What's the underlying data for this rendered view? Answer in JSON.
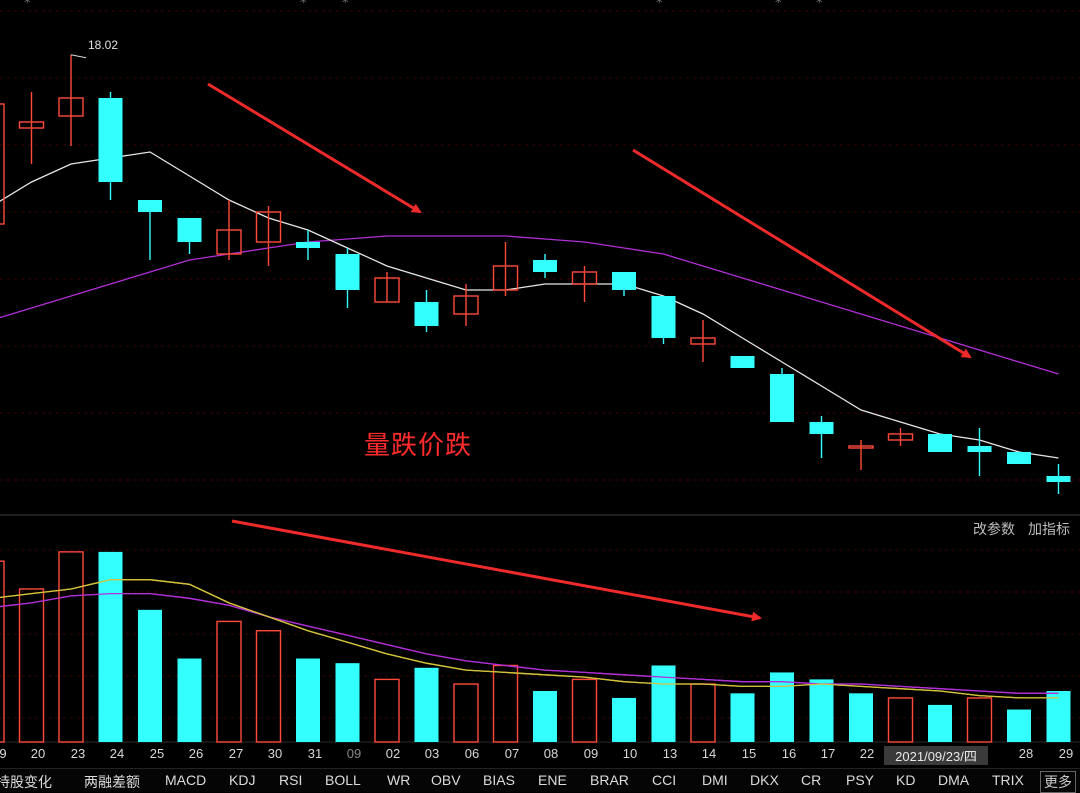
{
  "top_menu": [
    "*",
    "*",
    "*",
    "*",
    "*",
    "*"
  ],
  "high_label": "18.02",
  "annotation": "量跌价跌",
  "volume_panel": {
    "modify_params": "改参数",
    "add_indicator": "加指标"
  },
  "dates": [
    "9",
    "20",
    "23",
    "24",
    "25",
    "26",
    "27",
    "30",
    "31",
    "09",
    "02",
    "03",
    "06",
    "07",
    "08",
    "09",
    "10",
    "13",
    "14",
    "15",
    "16",
    "17",
    "22",
    "2021/09/23/四",
    "28",
    "29"
  ],
  "dim_dates": [
    9
  ],
  "highlight_date": 23,
  "tabs": [
    "持股变化",
    "两融差额",
    "MACD",
    "KDJ",
    "RSI",
    "BOLL",
    "WR",
    "OBV",
    "BIAS",
    "ENE",
    "BRAR",
    "CCI",
    "DMI",
    "DKX",
    "CR",
    "PSY",
    "KD",
    "DMA",
    "TRIX",
    "更多"
  ],
  "colors": {
    "up": "#ff4a3a",
    "down": "#33ffff",
    "ma_short": "#e6e6e6",
    "ma_long": "#b12fd6",
    "vol_ma5": "#d2c23a",
    "vol_ma10": "#b12fd6",
    "arrow": "#ee2a2a"
  },
  "chart_data": {
    "type": "candlestick",
    "price_labels": [
      "18.02"
    ],
    "candles": [
      {
        "d": "9",
        "o": 15.2,
        "c": 17.2,
        "h": 17.5,
        "l": 14.9
      },
      {
        "d": "20",
        "o": 16.8,
        "c": 16.9,
        "h": 17.4,
        "l": 16.2
      },
      {
        "d": "23",
        "o": 17.0,
        "c": 17.3,
        "h": 18.02,
        "l": 16.5
      },
      {
        "d": "24",
        "o": 17.3,
        "c": 15.9,
        "h": 17.4,
        "l": 15.6
      },
      {
        "d": "25",
        "o": 15.6,
        "c": 15.4,
        "h": 15.6,
        "l": 14.6
      },
      {
        "d": "26",
        "o": 15.3,
        "c": 14.9,
        "h": 15.3,
        "l": 14.7
      },
      {
        "d": "27",
        "o": 14.7,
        "c": 15.1,
        "h": 15.6,
        "l": 14.6
      },
      {
        "d": "30",
        "o": 14.9,
        "c": 15.4,
        "h": 15.5,
        "l": 14.5
      },
      {
        "d": "31",
        "o": 14.9,
        "c": 14.8,
        "h": 15.1,
        "l": 14.6
      },
      {
        "d": "09",
        "o": 14.7,
        "c": 14.1,
        "h": 14.8,
        "l": 13.8
      },
      {
        "d": "02",
        "o": 13.9,
        "c": 14.3,
        "h": 14.4,
        "l": 13.9
      },
      {
        "d": "03",
        "o": 13.9,
        "c": 13.5,
        "h": 14.1,
        "l": 13.4
      },
      {
        "d": "06",
        "o": 13.7,
        "c": 14.0,
        "h": 14.2,
        "l": 13.5
      },
      {
        "d": "07",
        "o": 14.1,
        "c": 14.5,
        "h": 14.9,
        "l": 14.0
      },
      {
        "d": "08",
        "o": 14.6,
        "c": 14.4,
        "h": 14.7,
        "l": 14.3
      },
      {
        "d": "09",
        "o": 14.2,
        "c": 14.4,
        "h": 14.5,
        "l": 13.9
      },
      {
        "d": "10",
        "o": 14.4,
        "c": 14.1,
        "h": 14.4,
        "l": 14.0
      },
      {
        "d": "13",
        "o": 14.0,
        "c": 13.3,
        "h": 14.0,
        "l": 13.2
      },
      {
        "d": "14",
        "o": 13.2,
        "c": 13.3,
        "h": 13.6,
        "l": 12.9
      },
      {
        "d": "15",
        "o": 13.0,
        "c": 12.8,
        "h": 13.0,
        "l": 12.8
      },
      {
        "d": "16",
        "o": 12.7,
        "c": 11.9,
        "h": 12.8,
        "l": 11.9
      },
      {
        "d": "17",
        "o": 11.9,
        "c": 11.7,
        "h": 12.0,
        "l": 11.3
      },
      {
        "d": "22",
        "o": 11.5,
        "c": 11.5,
        "h": 11.6,
        "l": 11.1
      },
      {
        "d": "23",
        "o": 11.6,
        "c": 11.7,
        "h": 11.8,
        "l": 11.5
      },
      {
        "d": "24",
        "o": 11.7,
        "c": 11.4,
        "h": 11.7,
        "l": 11.4
      },
      {
        "d": "27",
        "o": 11.5,
        "c": 11.4,
        "h": 11.8,
        "l": 11.0
      },
      {
        "d": "28",
        "o": 11.4,
        "c": 11.2,
        "h": 11.4,
        "l": 11.2
      },
      {
        "d": "29",
        "o": 11.0,
        "c": 10.9,
        "h": 11.2,
        "l": 10.7
      }
    ],
    "ma_short": [
      15.5,
      15.9,
      16.2,
      16.3,
      16.4,
      16.0,
      15.6,
      15.3,
      15.1,
      14.8,
      14.5,
      14.3,
      14.1,
      14.1,
      14.2,
      14.2,
      14.2,
      14.0,
      13.7,
      13.3,
      12.9,
      12.5,
      12.1,
      11.9,
      11.7,
      11.6,
      11.4,
      11.3
    ],
    "ma_long": [
      13.6,
      13.8,
      14.0,
      14.2,
      14.4,
      14.6,
      14.7,
      14.8,
      14.9,
      14.95,
      15.0,
      15.0,
      15.0,
      15.0,
      14.95,
      14.9,
      14.8,
      14.7,
      14.5,
      14.3,
      14.1,
      13.9,
      13.7,
      13.5,
      13.3,
      13.1,
      12.9,
      12.7
    ],
    "volume": [
      {
        "v": 0.78,
        "up": true
      },
      {
        "v": 0.66,
        "up": true
      },
      {
        "v": 0.82,
        "up": true
      },
      {
        "v": 0.82,
        "up": false
      },
      {
        "v": 0.57,
        "up": false
      },
      {
        "v": 0.36,
        "up": false
      },
      {
        "v": 0.52,
        "up": true
      },
      {
        "v": 0.48,
        "up": true
      },
      {
        "v": 0.36,
        "up": false
      },
      {
        "v": 0.34,
        "up": false
      },
      {
        "v": 0.27,
        "up": true
      },
      {
        "v": 0.32,
        "up": false
      },
      {
        "v": 0.25,
        "up": true
      },
      {
        "v": 0.33,
        "up": true
      },
      {
        "v": 0.22,
        "up": false
      },
      {
        "v": 0.27,
        "up": true
      },
      {
        "v": 0.19,
        "up": false
      },
      {
        "v": 0.33,
        "up": false
      },
      {
        "v": 0.25,
        "up": true
      },
      {
        "v": 0.21,
        "up": false
      },
      {
        "v": 0.3,
        "up": false
      },
      {
        "v": 0.27,
        "up": false
      },
      {
        "v": 0.21,
        "up": false
      },
      {
        "v": 0.19,
        "up": true
      },
      {
        "v": 0.16,
        "up": false
      },
      {
        "v": 0.19,
        "up": true
      },
      {
        "v": 0.14,
        "up": false
      },
      {
        "v": 0.22,
        "up": false
      }
    ],
    "vol_ma5": [
      0.62,
      0.64,
      0.66,
      0.7,
      0.7,
      0.68,
      0.6,
      0.54,
      0.48,
      0.43,
      0.38,
      0.34,
      0.31,
      0.3,
      0.29,
      0.28,
      0.26,
      0.25,
      0.25,
      0.24,
      0.24,
      0.25,
      0.24,
      0.23,
      0.22,
      0.2,
      0.19,
      0.19
    ],
    "vol_ma10": [
      0.58,
      0.6,
      0.63,
      0.64,
      0.64,
      0.62,
      0.59,
      0.54,
      0.5,
      0.46,
      0.42,
      0.38,
      0.35,
      0.33,
      0.31,
      0.3,
      0.29,
      0.28,
      0.27,
      0.26,
      0.26,
      0.25,
      0.25,
      0.24,
      0.23,
      0.22,
      0.21,
      0.21
    ]
  }
}
